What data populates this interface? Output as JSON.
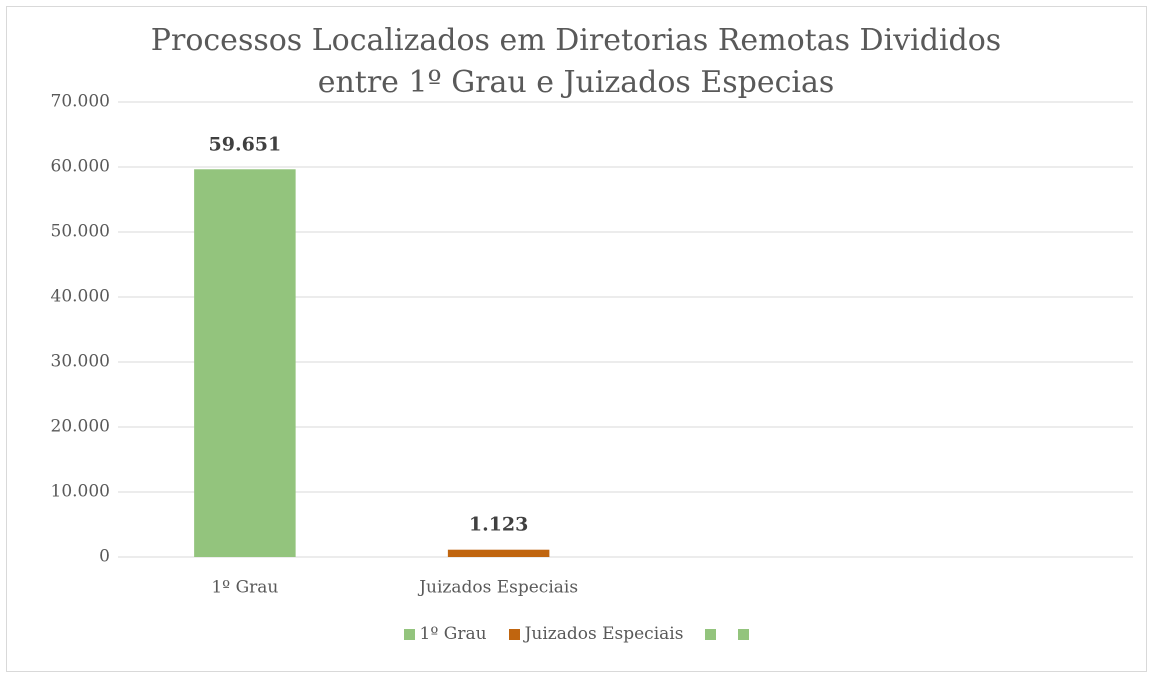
{
  "chart_data": {
    "type": "bar",
    "title": "Processos Localizados em Diretorias Remotas Divididos entre 1º Grau e Juizados Especias",
    "categories": [
      "1º Grau",
      "Juizados Especiais",
      null,
      null
    ],
    "values": [
      59651,
      1123,
      null,
      null
    ],
    "value_labels": [
      "59.651",
      "1.123",
      null,
      null
    ],
    "colors": [
      "#93c47d",
      "#c0650f",
      "#93c47d",
      "#93c47d"
    ],
    "ylim": [
      0,
      70000
    ],
    "yticks": [
      0,
      {
        "value": 10000,
        "label": "10.000"
      },
      {
        "value": 20000,
        "label": "20.000"
      },
      {
        "value": 30000,
        "label": "30.000"
      },
      {
        "value": 40000,
        "label": "40.000"
      },
      {
        "value": 50000,
        "label": "50.000"
      },
      {
        "value": 60000,
        "label": "60.000"
      },
      {
        "value": 70000,
        "label": "70.000"
      }
    ],
    "grid": true,
    "legend": "bottom"
  }
}
